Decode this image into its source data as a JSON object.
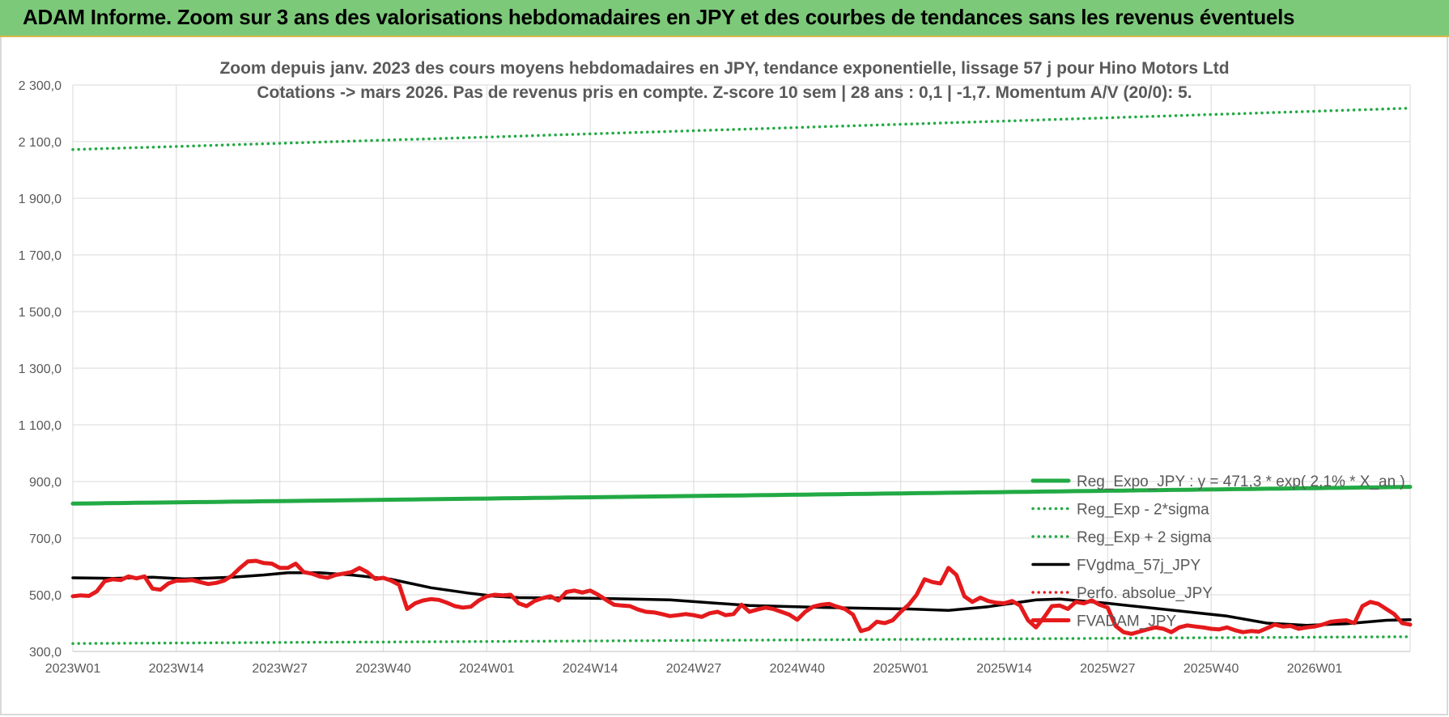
{
  "banner": {
    "title": "ADAM Informe. Zoom sur 3 ans des valorisations hebdomadaires en JPY et des courbes de tendances sans les revenus éventuels"
  },
  "chart_data": {
    "type": "line",
    "title": [
      "Zoom depuis janv. 2023 des cours moyens hebdomadaires en JPY, tendance exponentielle, lissage 57 j pour Hino Motors Ltd",
      "Cotations -> mars 2026. Pas de revenus pris en compte. Z-score 10 sem | 28 ans : 0,1 | -1,7. Momentum A/V (20/0): 5."
    ],
    "xlabel": "",
    "ylabel": "",
    "ylim": [
      300,
      2300
    ],
    "yticks": [
      "2 300,0",
      "2 100,0",
      "1 900,0",
      "1 700,0",
      "1 500,0",
      "1 300,0",
      "1 100,0",
      "900,0",
      "700,0",
      "500,0",
      "300,0"
    ],
    "ytick_values": [
      2300,
      2100,
      1900,
      1700,
      1500,
      1300,
      1100,
      900,
      700,
      500,
      300
    ],
    "xticks": [
      "2023W01",
      "2023W14",
      "2023W27",
      "2023W40",
      "2024W01",
      "2024W14",
      "2024W27",
      "2024W40",
      "2025W01",
      "2025W14",
      "2025W27",
      "2025W40",
      "2026W01"
    ],
    "x_weeks": 168,
    "grid": true,
    "legend_position": "bottom-right",
    "series": [
      {
        "name": "Reg_Expo_JPY : y = 471,3 * exp( 2,1% * X_an )",
        "color": "#22aa44",
        "style": "solid-thick",
        "points": [
          [
            0,
            822
          ],
          [
            168,
            881
          ]
        ]
      },
      {
        "name": "Reg_Exp - 2*sigma",
        "color": "#22aa44",
        "style": "dotted",
        "points": [
          [
            0,
            328
          ],
          [
            168,
            352
          ]
        ]
      },
      {
        "name": "Reg_Exp + 2 sigma",
        "color": "#22aa44",
        "style": "dotted",
        "points": [
          [
            0,
            2072
          ],
          [
            168,
            2218
          ]
        ]
      },
      {
        "name": "FVgdma_57j_JPY",
        "color": "#000000",
        "style": "solid",
        "points": [
          [
            0,
            560
          ],
          [
            5,
            558
          ],
          [
            10,
            562
          ],
          [
            14,
            556
          ],
          [
            20,
            562
          ],
          [
            24,
            570
          ],
          [
            27,
            578
          ],
          [
            31,
            578
          ],
          [
            35,
            570
          ],
          [
            40,
            555
          ],
          [
            45,
            525
          ],
          [
            50,
            505
          ],
          [
            53,
            495
          ],
          [
            56,
            490
          ],
          [
            65,
            488
          ],
          [
            75,
            482
          ],
          [
            85,
            462
          ],
          [
            95,
            455
          ],
          [
            100,
            452
          ],
          [
            105,
            450
          ],
          [
            110,
            445
          ],
          [
            115,
            458
          ],
          [
            118,
            470
          ],
          [
            121,
            482
          ],
          [
            124,
            485
          ],
          [
            130,
            470
          ],
          [
            135,
            455
          ],
          [
            140,
            440
          ],
          [
            145,
            425
          ],
          [
            150,
            400
          ],
          [
            155,
            392
          ],
          [
            160,
            398
          ],
          [
            165,
            410
          ],
          [
            168,
            412
          ]
        ]
      },
      {
        "name": "Perfo. absolue_JPY",
        "color": "#e41a1c",
        "style": "dotted",
        "points": []
      },
      {
        "name": "FVADAM_JPY",
        "color": "#e41a1c",
        "style": "solid-thick",
        "points": [
          [
            0,
            495
          ],
          [
            1,
            498
          ],
          [
            2,
            496
          ],
          [
            3,
            512
          ],
          [
            4,
            548
          ],
          [
            5,
            555
          ],
          [
            6,
            552
          ],
          [
            7,
            565
          ],
          [
            8,
            558
          ],
          [
            9,
            565
          ],
          [
            10,
            522
          ],
          [
            11,
            518
          ],
          [
            12,
            540
          ],
          [
            13,
            550
          ],
          [
            14,
            550
          ],
          [
            15,
            552
          ],
          [
            16,
            545
          ],
          [
            17,
            538
          ],
          [
            18,
            542
          ],
          [
            19,
            550
          ],
          [
            20,
            568
          ],
          [
            21,
            595
          ],
          [
            22,
            618
          ],
          [
            23,
            620
          ],
          [
            24,
            612
          ],
          [
            25,
            610
          ],
          [
            26,
            595
          ],
          [
            27,
            595
          ],
          [
            28,
            610
          ],
          [
            29,
            580
          ],
          [
            30,
            575
          ],
          [
            31,
            565
          ],
          [
            32,
            560
          ],
          [
            33,
            570
          ],
          [
            34,
            575
          ],
          [
            35,
            580
          ],
          [
            36,
            595
          ],
          [
            37,
            580
          ],
          [
            38,
            556
          ],
          [
            39,
            560
          ],
          [
            40,
            550
          ],
          [
            41,
            535
          ],
          [
            42,
            450
          ],
          [
            43,
            470
          ],
          [
            44,
            480
          ],
          [
            45,
            485
          ],
          [
            46,
            482
          ],
          [
            47,
            472
          ],
          [
            48,
            460
          ],
          [
            49,
            455
          ],
          [
            50,
            458
          ],
          [
            51,
            480
          ],
          [
            52,
            495
          ],
          [
            53,
            500
          ],
          [
            54,
            498
          ],
          [
            55,
            500
          ],
          [
            56,
            470
          ],
          [
            57,
            460
          ],
          [
            58,
            478
          ],
          [
            59,
            488
          ],
          [
            60,
            495
          ],
          [
            61,
            480
          ],
          [
            62,
            510
          ],
          [
            63,
            515
          ],
          [
            64,
            508
          ],
          [
            65,
            515
          ],
          [
            66,
            500
          ],
          [
            67,
            482
          ],
          [
            68,
            465
          ],
          [
            69,
            462
          ],
          [
            70,
            460
          ],
          [
            71,
            448
          ],
          [
            72,
            440
          ],
          [
            73,
            438
          ],
          [
            74,
            432
          ],
          [
            75,
            425
          ],
          [
            76,
            428
          ],
          [
            77,
            432
          ],
          [
            78,
            428
          ],
          [
            79,
            422
          ],
          [
            80,
            435
          ],
          [
            81,
            440
          ],
          [
            82,
            428
          ],
          [
            83,
            432
          ],
          [
            84,
            465
          ],
          [
            85,
            440
          ],
          [
            86,
            448
          ],
          [
            87,
            455
          ],
          [
            88,
            450
          ],
          [
            89,
            440
          ],
          [
            90,
            430
          ],
          [
            91,
            412
          ],
          [
            92,
            440
          ],
          [
            93,
            458
          ],
          [
            94,
            465
          ],
          [
            95,
            468
          ],
          [
            96,
            458
          ],
          [
            97,
            450
          ],
          [
            98,
            430
          ],
          [
            99,
            372
          ],
          [
            100,
            380
          ],
          [
            101,
            405
          ],
          [
            102,
            400
          ],
          [
            103,
            410
          ],
          [
            104,
            440
          ],
          [
            105,
            465
          ],
          [
            106,
            500
          ],
          [
            107,
            555
          ],
          [
            108,
            545
          ],
          [
            109,
            540
          ],
          [
            110,
            595
          ],
          [
            111,
            570
          ],
          [
            112,
            495
          ],
          [
            113,
            475
          ],
          [
            114,
            490
          ],
          [
            115,
            478
          ],
          [
            116,
            472
          ],
          [
            117,
            470
          ],
          [
            118,
            478
          ],
          [
            119,
            462
          ],
          [
            120,
            410
          ],
          [
            121,
            385
          ],
          [
            122,
            420
          ],
          [
            123,
            460
          ],
          [
            124,
            462
          ],
          [
            125,
            450
          ],
          [
            126,
            475
          ],
          [
            127,
            470
          ],
          [
            128,
            480
          ],
          [
            129,
            465
          ],
          [
            130,
            455
          ],
          [
            131,
            390
          ],
          [
            132,
            368
          ],
          [
            133,
            362
          ],
          [
            134,
            370
          ],
          [
            135,
            378
          ],
          [
            136,
            385
          ],
          [
            137,
            380
          ],
          [
            138,
            368
          ],
          [
            139,
            385
          ],
          [
            140,
            392
          ],
          [
            141,
            388
          ],
          [
            142,
            385
          ],
          [
            143,
            380
          ],
          [
            144,
            378
          ],
          [
            145,
            385
          ],
          [
            146,
            375
          ],
          [
            147,
            368
          ],
          [
            148,
            372
          ],
          [
            149,
            370
          ],
          [
            150,
            382
          ],
          [
            151,
            395
          ],
          [
            152,
            388
          ],
          [
            153,
            390
          ],
          [
            154,
            380
          ],
          [
            155,
            385
          ],
          [
            156,
            388
          ],
          [
            157,
            395
          ],
          [
            158,
            405
          ],
          [
            159,
            408
          ],
          [
            160,
            410
          ],
          [
            161,
            400
          ],
          [
            162,
            460
          ],
          [
            163,
            475
          ],
          [
            164,
            468
          ],
          [
            165,
            450
          ],
          [
            166,
            432
          ],
          [
            167,
            400
          ],
          [
            168,
            395
          ]
        ]
      }
    ]
  }
}
